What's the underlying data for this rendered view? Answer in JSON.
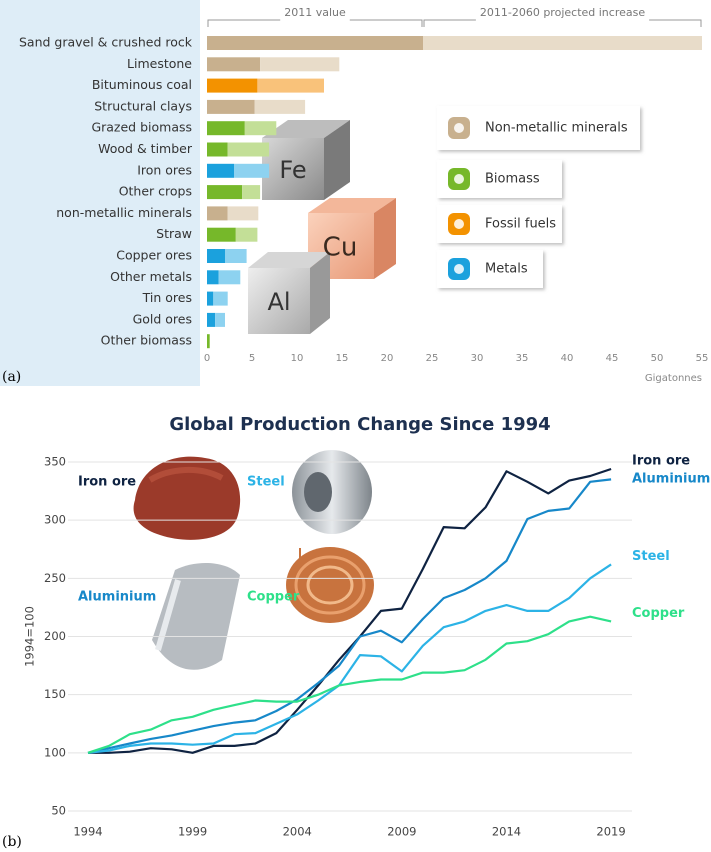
{
  "chart_data": [
    {
      "type": "bar",
      "orientation": "horizontal",
      "stacked": true,
      "panel_label": "(a)",
      "categories": [
        "Sand gravel & crushed rock",
        "Limestone",
        "Bituminous coal",
        "Structural clays",
        "Grazed biomass",
        "Wood & timber",
        "Iron ores",
        "Other crops",
        "non-metallic minerals",
        "Straw",
        "Copper ores",
        "Other metals",
        "Tin ores",
        "Gold ores",
        "Other biomass"
      ],
      "series": [
        {
          "name": "2011 value",
          "colors": [
            "#c8b08e",
            "#c8b08e",
            "#f39200",
            "#c8b08e",
            "#76b82a",
            "#76b82a",
            "#1ba1dd",
            "#76b82a",
            "#c8b08e",
            "#76b82a",
            "#1ba1dd",
            "#1ba1dd",
            "#1ba1dd",
            "#1ba1dd",
            "#76b82a"
          ],
          "values": [
            24,
            5.9,
            5.6,
            5.3,
            4.2,
            2.3,
            3.0,
            3.9,
            2.3,
            3.2,
            2.0,
            1.3,
            0.7,
            0.9,
            0.3
          ]
        },
        {
          "name": "2011-2060 projected increase",
          "colors": [
            "#e8dcc9",
            "#e8dcc9",
            "#f9c27a",
            "#e8dcc9",
            "#c3df97",
            "#c3df97",
            "#8dd2f0",
            "#c3df97",
            "#e8dcc9",
            "#c3df97",
            "#8dd2f0",
            "#8dd2f0",
            "#8dd2f0",
            "#8dd2f0",
            "#c3df97"
          ],
          "values": [
            31,
            8.8,
            7.4,
            5.6,
            3.5,
            4.6,
            3.9,
            2.0,
            3.4,
            2.4,
            2.4,
            2.4,
            1.6,
            1.1,
            0
          ]
        }
      ],
      "xlim": [
        0,
        55
      ],
      "xticks": [
        0,
        5,
        10,
        15,
        20,
        25,
        30,
        35,
        40,
        45,
        50,
        55
      ],
      "xlabel": "Gigatonnes",
      "legend": [
        {
          "name": "Non-metallic minerals",
          "color": "#c8b08e"
        },
        {
          "name": "Biomass",
          "color": "#76b82a"
        },
        {
          "name": "Fossil fuels",
          "color": "#f39200"
        },
        {
          "name": "Metals",
          "color": "#1ba1dd"
        }
      ],
      "image_labels": [
        "Fe",
        "Cu",
        "Al"
      ]
    },
    {
      "type": "line",
      "panel_label": "(b)",
      "title": "Global Production Change Since 1994",
      "ylabel": "1994=100",
      "x": [
        1994,
        1995,
        1996,
        1997,
        1998,
        1999,
        2000,
        2001,
        2002,
        2003,
        2004,
        2005,
        2006,
        2007,
        2008,
        2009,
        2010,
        2011,
        2012,
        2013,
        2014,
        2015,
        2016,
        2017,
        2018,
        2019
      ],
      "series": [
        {
          "name": "Iron ore",
          "color": "#0f2342",
          "values": [
            100,
            100,
            101,
            104,
            103,
            100,
            106,
            106,
            108,
            117,
            137,
            158,
            180,
            200,
            222,
            224,
            258,
            294,
            293,
            311,
            342,
            333,
            323,
            334,
            338,
            344
          ]
        },
        {
          "name": "Aluminium",
          "color": "#1788c9",
          "values": [
            100,
            104,
            108,
            112,
            115,
            119,
            123,
            126,
            128,
            136,
            146,
            160,
            175,
            200,
            205,
            195,
            215,
            233,
            240,
            250,
            265,
            301,
            308,
            310,
            333,
            335
          ]
        },
        {
          "name": "Steel",
          "color": "#2cb3e6",
          "values": [
            100,
            102,
            106,
            108,
            108,
            107,
            108,
            116,
            117,
            125,
            133,
            145,
            158,
            184,
            183,
            170,
            192,
            208,
            213,
            222,
            227,
            222,
            222,
            233,
            250,
            262
          ]
        },
        {
          "name": "Copper",
          "color": "#2ee08a",
          "values": [
            100,
            106,
            116,
            120,
            128,
            131,
            137,
            141,
            145,
            144,
            144,
            150,
            158,
            161,
            163,
            163,
            169,
            169,
            171,
            180,
            194,
            196,
            202,
            213,
            217,
            213
          ]
        }
      ],
      "xlim": [
        1994,
        2020
      ],
      "xticks": [
        1994,
        1999,
        2004,
        2009,
        2014,
        2019
      ],
      "ylim": [
        50,
        350
      ],
      "yticks": [
        50,
        100,
        150,
        200,
        250,
        300,
        350
      ],
      "grid": true,
      "image_labels": [
        "Iron ore",
        "Steel",
        "Aluminium",
        "Copper"
      ]
    }
  ]
}
